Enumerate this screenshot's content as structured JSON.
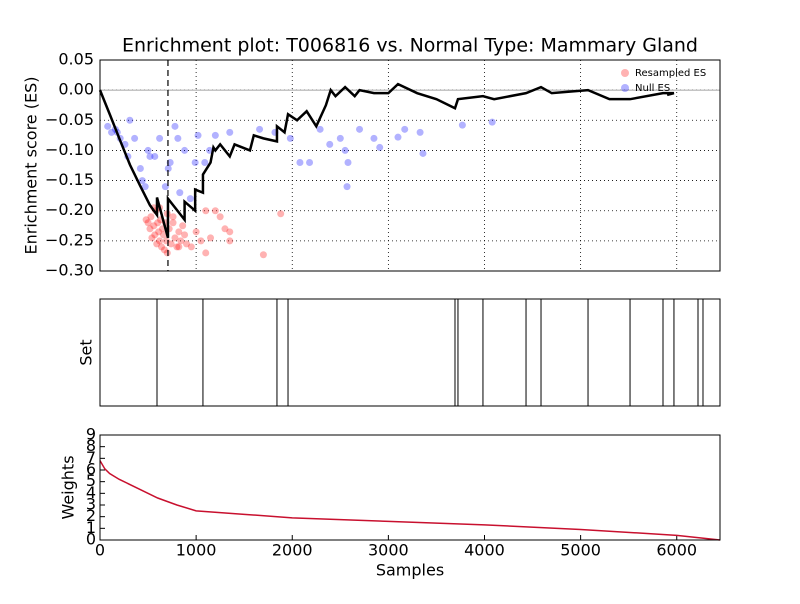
{
  "chart_data": [
    {
      "type": "es",
      "title": "Enrichment plot: T006816 vs. Normal Type: Mammary Gland",
      "y_label": "Enrichment score (ES)",
      "xlim": [
        0,
        6450
      ],
      "ylim": [
        -0.3,
        0.05
      ],
      "xticks": [
        0,
        1000,
        2000,
        3000,
        4000,
        5000,
        6000
      ],
      "show_xtick_labels": false,
      "yticks": [
        0.05,
        {
          "value": 0,
          "label": "0.00"
        },
        {
          "value": -0.05,
          "label": "−0.05"
        },
        {
          "value": -0.1,
          "label": "−0.10"
        },
        {
          "value": -0.15,
          "label": "−0.15"
        },
        {
          "value": -0.2,
          "label": "−0.20"
        },
        {
          "value": -0.25,
          "label": "−0.25"
        },
        {
          "value": -0.3,
          "label": "−0.30"
        }
      ],
      "grid": true,
      "legend": "upper right",
      "vline_x": 707,
      "series": [
        {
          "name": "Resampled ES",
          "kind": "scatter",
          "color": "#ff0000",
          "x": [
            480,
            500,
            520,
            530,
            540,
            560,
            570,
            580,
            590,
            600,
            610,
            620,
            630,
            640,
            650,
            660,
            670,
            680,
            690,
            700,
            720,
            740,
            760,
            780,
            800,
            820,
            840,
            860,
            880,
            900,
            950,
            1000,
            1050,
            1100,
            1100,
            1150,
            1200,
            1250,
            1300,
            1350,
            1350,
            1700,
            1880,
            620,
            560,
            700,
            760,
            820
          ],
          "values": [
            -0.215,
            -0.22,
            -0.23,
            -0.21,
            -0.245,
            -0.225,
            -0.24,
            -0.2,
            -0.255,
            -0.22,
            -0.235,
            -0.25,
            -0.215,
            -0.26,
            -0.23,
            -0.24,
            -0.265,
            -0.22,
            -0.25,
            -0.27,
            -0.23,
            -0.255,
            -0.22,
            -0.245,
            -0.26,
            -0.235,
            -0.25,
            -0.225,
            -0.24,
            -0.255,
            -0.26,
            -0.235,
            -0.25,
            -0.27,
            -0.2,
            -0.245,
            -0.2,
            -0.21,
            -0.23,
            -0.235,
            -0.25,
            -0.273,
            -0.205,
            -0.195,
            -0.195,
            -0.205,
            -0.21,
            -0.26
          ]
        },
        {
          "name": "Null ES",
          "kind": "scatter",
          "color": "#0000ff",
          "x": [
            80,
            120,
            160,
            180,
            210,
            260,
            290,
            310,
            360,
            420,
            440,
            470,
            500,
            520,
            570,
            620,
            680,
            710,
            730,
            780,
            810,
            830,
            880,
            940,
            990,
            1020,
            1090,
            1140,
            1200,
            1350,
            1660,
            1820,
            1980,
            2080,
            2180,
            2290,
            2390,
            2500,
            2550,
            2570,
            2580,
            2700,
            2850,
            2910,
            3100,
            3170,
            3330,
            3360,
            3770,
            4080
          ],
          "values": [
            -0.06,
            -0.07,
            -0.065,
            -0.07,
            -0.08,
            -0.09,
            -0.11,
            -0.05,
            -0.08,
            -0.13,
            -0.15,
            -0.16,
            -0.1,
            -0.11,
            -0.11,
            -0.08,
            -0.16,
            -0.13,
            -0.12,
            -0.06,
            -0.08,
            -0.17,
            -0.1,
            -0.18,
            -0.12,
            -0.075,
            -0.12,
            -0.1,
            -0.075,
            -0.07,
            -0.065,
            -0.07,
            -0.08,
            -0.12,
            -0.12,
            -0.065,
            -0.09,
            -0.08,
            -0.1,
            -0.16,
            -0.12,
            -0.065,
            -0.08,
            -0.095,
            -0.078,
            -0.065,
            -0.07,
            -0.105,
            -0.058,
            -0.053
          ]
        },
        {
          "kind": "line",
          "color": "#000000",
          "x": [
            0,
            104,
            208,
            312,
            416,
            520,
            593,
            593,
            707,
            707,
            880,
            880,
            990,
            990,
            1071,
            1071,
            1150,
            1180,
            1200,
            1250,
            1350,
            1400,
            1560,
            1600,
            1700,
            1841,
            1841,
            1920,
            1956,
            2050,
            2150,
            2250,
            2350,
            2400,
            2450,
            2550,
            2650,
            2700,
            2850,
            3000,
            3100,
            3300,
            3500,
            3693,
            3724,
            3984,
            4100,
            4432,
            4588,
            4700,
            5077,
            5300,
            5514,
            5857,
            5971,
            5900
          ],
          "values": [
            0,
            -0.041,
            -0.083,
            -0.124,
            -0.158,
            -0.191,
            -0.207,
            -0.178,
            -0.245,
            -0.18,
            -0.215,
            -0.185,
            -0.2,
            -0.165,
            -0.17,
            -0.14,
            -0.12,
            -0.095,
            -0.1,
            -0.09,
            -0.11,
            -0.09,
            -0.1,
            -0.075,
            -0.08,
            -0.085,
            -0.06,
            -0.07,
            -0.04,
            -0.05,
            -0.035,
            -0.06,
            -0.025,
            0,
            -0.01,
            0.005,
            -0.01,
            0,
            -0.005,
            -0.005,
            0.01,
            -0.005,
            -0.015,
            -0.03,
            -0.015,
            -0.01,
            -0.015,
            -0.005,
            0.005,
            -0.005,
            0,
            -0.015,
            -0.015,
            -0.005,
            -0.005,
            -0.008
          ]
        }
      ]
    },
    {
      "type": "rug",
      "y_label": "Set",
      "xlim": [
        0,
        6450
      ],
      "x": [
        593,
        1071,
        1841,
        1956,
        3693,
        3724,
        3984,
        4432,
        4588,
        5077,
        5514,
        5857,
        5971,
        6221,
        6273
      ]
    },
    {
      "type": "line",
      "y_label": "Weights",
      "x_label": "Samples",
      "xlim": [
        0,
        6450
      ],
      "ylim": [
        0,
        9
      ],
      "xticks": [
        0,
        1000,
        2000,
        3000,
        4000,
        5000,
        6000
      ],
      "yticks": [
        0,
        1,
        2,
        3,
        4,
        5,
        6,
        7,
        8,
        9
      ],
      "color": "#c8102e",
      "x": [
        0,
        50,
        100,
        200,
        400,
        600,
        800,
        1000,
        1500,
        2000,
        3000,
        4000,
        5000,
        6000,
        6450
      ],
      "values": [
        6.8,
        6.1,
        5.7,
        5.2,
        4.4,
        3.6,
        3.0,
        2.5,
        2.2,
        1.9,
        1.6,
        1.3,
        0.9,
        0.4,
        0
      ]
    }
  ]
}
